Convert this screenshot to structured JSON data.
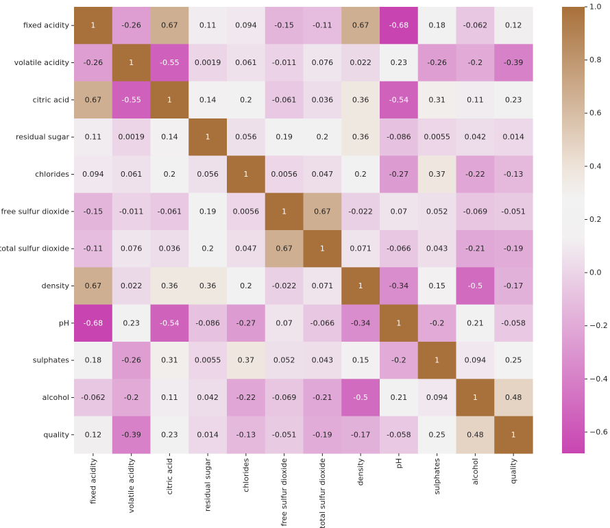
{
  "chart_data": {
    "type": "heatmap",
    "title": "",
    "xlabel": "",
    "ylabel": "",
    "rows": [
      "fixed acidity",
      "volatile acidity",
      "citric acid",
      "residual sugar",
      "chlorides",
      "free sulfur dioxide",
      "total sulfur dioxide",
      "density",
      "pH",
      "sulphates",
      "alcohol",
      "quality"
    ],
    "columns": [
      "fixed acidity",
      "volatile acidity",
      "citric acid",
      "residual sugar",
      "chlorides",
      "free sulfur dioxide",
      "total sulfur dioxide",
      "density",
      "pH",
      "sulphates",
      "alcohol",
      "quality"
    ],
    "values": [
      [
        1,
        -0.26,
        0.67,
        0.11,
        0.094,
        -0.15,
        -0.11,
        0.67,
        -0.68,
        0.18,
        -0.062,
        0.12
      ],
      [
        -0.26,
        1,
        -0.55,
        0.0019,
        0.061,
        -0.011,
        0.076,
        0.022,
        0.23,
        -0.26,
        -0.2,
        -0.39
      ],
      [
        0.67,
        -0.55,
        1,
        0.14,
        0.2,
        -0.061,
        0.036,
        0.36,
        -0.54,
        0.31,
        0.11,
        0.23
      ],
      [
        0.11,
        0.0019,
        0.14,
        1,
        0.056,
        0.19,
        0.2,
        0.36,
        -0.086,
        0.0055,
        0.042,
        0.014
      ],
      [
        0.094,
        0.061,
        0.2,
        0.056,
        1,
        0.0056,
        0.047,
        0.2,
        -0.27,
        0.37,
        -0.22,
        -0.13
      ],
      [
        -0.15,
        -0.011,
        -0.061,
        0.19,
        0.0056,
        1,
        0.67,
        -0.022,
        0.07,
        0.052,
        -0.069,
        -0.051
      ],
      [
        -0.11,
        0.076,
        0.036,
        0.2,
        0.047,
        0.67,
        1,
        0.071,
        -0.066,
        0.043,
        -0.21,
        -0.19
      ],
      [
        0.67,
        0.022,
        0.36,
        0.36,
        0.2,
        -0.022,
        0.071,
        1,
        -0.34,
        0.15,
        -0.5,
        -0.17
      ],
      [
        -0.68,
        0.23,
        -0.54,
        -0.086,
        -0.27,
        0.07,
        -0.066,
        -0.34,
        1,
        -0.2,
        0.21,
        -0.058
      ],
      [
        0.18,
        -0.26,
        0.31,
        0.0055,
        0.37,
        0.052,
        0.043,
        0.15,
        -0.2,
        1,
        0.094,
        0.25
      ],
      [
        -0.062,
        -0.2,
        0.11,
        0.042,
        -0.22,
        -0.069,
        -0.21,
        -0.5,
        0.21,
        0.094,
        1,
        0.48
      ],
      [
        0.12,
        -0.39,
        0.23,
        0.014,
        -0.13,
        -0.051,
        -0.19,
        -0.17,
        -0.058,
        0.25,
        0.48,
        1
      ]
    ],
    "color_range": [
      -0.68,
      1
    ],
    "colorbar_ticks": [
      1.0,
      0.8,
      0.6,
      0.4,
      0.2,
      0.0,
      -0.2,
      -0.4,
      -0.6
    ],
    "colorbar_tick_labels": [
      "1.0",
      "0.8",
      "0.6",
      "0.4",
      "0.2",
      "0.0",
      "−0.2",
      "−0.4",
      "−0.6"
    ],
    "colormap_stops": [
      {
        "value": -0.68,
        "color": "#c845b1"
      },
      {
        "value": 0.13,
        "color": "#f2f0f1"
      },
      {
        "value": 0.28,
        "color": "#f2f2f2"
      },
      {
        "value": 0.4,
        "color": "#eee3d9"
      },
      {
        "value": 1.0,
        "color": "#a8703a"
      }
    ],
    "annotation_text_dark": "#262626",
    "annotation_text_light": "#ffffff",
    "legend": "colorbar-right"
  }
}
